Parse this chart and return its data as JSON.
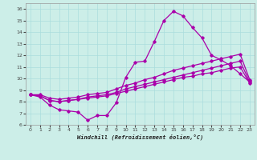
{
  "xlabel": "Windchill (Refroidissement éolien,°C)",
  "background_color": "#cceee8",
  "grid_color": "#aadddd",
  "line_color": "#aa00aa",
  "xlim": [
    -0.5,
    23.5
  ],
  "ylim": [
    6,
    16.5
  ],
  "xticks": [
    0,
    1,
    2,
    3,
    4,
    5,
    6,
    7,
    8,
    9,
    10,
    11,
    12,
    13,
    14,
    15,
    16,
    17,
    18,
    19,
    20,
    21,
    22,
    23
  ],
  "yticks": [
    6,
    7,
    8,
    9,
    10,
    11,
    12,
    13,
    14,
    15,
    16
  ],
  "series": [
    [
      8.6,
      8.4,
      7.7,
      7.3,
      7.2,
      7.1,
      6.4,
      6.8,
      6.8,
      7.9,
      10.1,
      11.4,
      11.5,
      13.2,
      15.0,
      15.8,
      15.4,
      14.4,
      13.5,
      12.0,
      11.6,
      11.1,
      10.4,
      9.7
    ],
    [
      8.6,
      8.5,
      8.1,
      8.0,
      8.1,
      8.2,
      8.3,
      8.4,
      8.5,
      8.7,
      8.9,
      9.1,
      9.3,
      9.5,
      9.7,
      9.9,
      10.1,
      10.2,
      10.4,
      10.5,
      10.7,
      10.9,
      11.0,
      9.6
    ],
    [
      8.6,
      8.6,
      8.3,
      8.2,
      8.3,
      8.4,
      8.6,
      8.7,
      8.8,
      9.1,
      9.4,
      9.6,
      9.9,
      10.1,
      10.4,
      10.7,
      10.9,
      11.1,
      11.3,
      11.5,
      11.7,
      11.9,
      12.1,
      9.9
    ],
    [
      8.6,
      8.5,
      8.1,
      8.0,
      8.1,
      8.2,
      8.4,
      8.5,
      8.6,
      8.8,
      9.1,
      9.3,
      9.5,
      9.7,
      9.9,
      10.1,
      10.3,
      10.5,
      10.7,
      10.9,
      11.1,
      11.3,
      11.5,
      9.7
    ]
  ]
}
